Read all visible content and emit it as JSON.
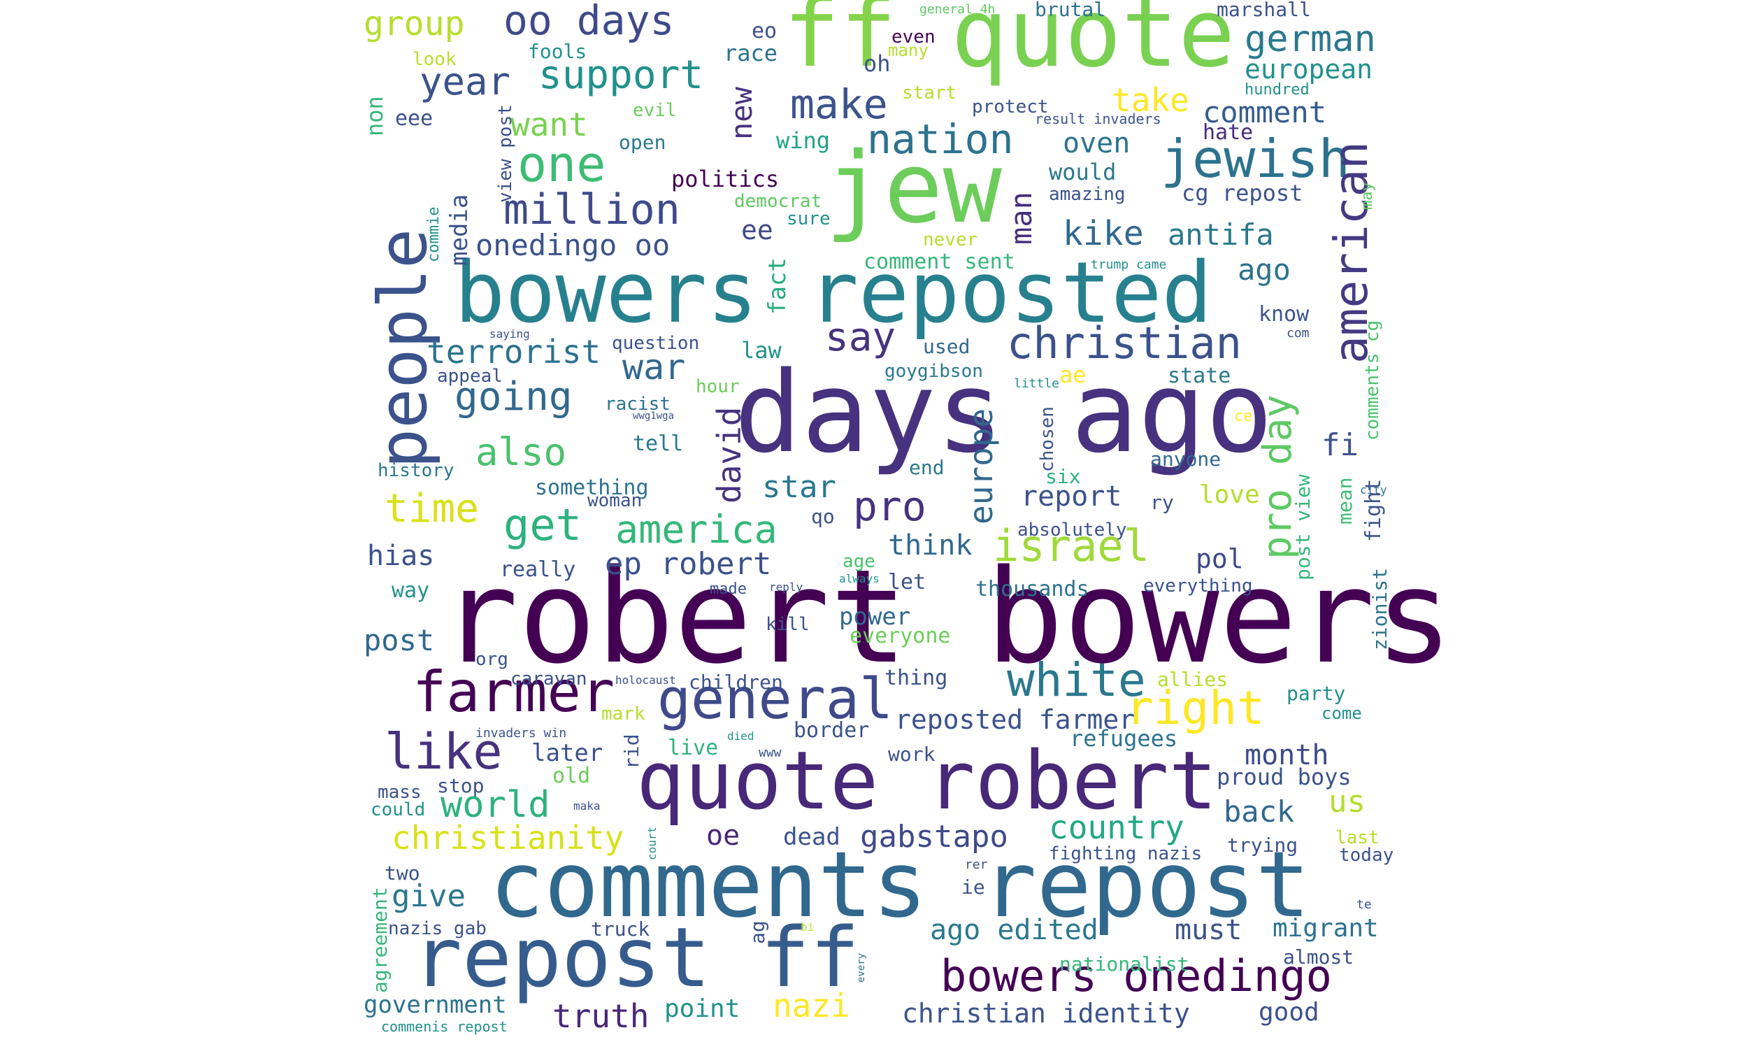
{
  "words": [
    {
      "text": "robert bowers",
      "color": "#440154"
    },
    {
      "text": "days ago",
      "color": "#46327e"
    },
    {
      "text": "comments repost",
      "color": "#31688e"
    },
    {
      "text": "quote robert",
      "color": "#482878"
    },
    {
      "text": "repost ff",
      "color": "#365c8d"
    },
    {
      "text": "bowers reposted",
      "color": "#27808e"
    },
    {
      "text": "jew",
      "color": "#6ccd5a"
    },
    {
      "text": "quote",
      "color": "#7ad151"
    },
    {
      "text": "ff",
      "color": "#84d44b"
    },
    {
      "text": "people",
      "color": "#3b528b"
    },
    {
      "text": "farmer",
      "color": "#440154"
    },
    {
      "text": "general",
      "color": "#3e4a89"
    },
    {
      "text": "jewish",
      "color": "#2c728e"
    },
    {
      "text": "white",
      "color": "#2a788e"
    },
    {
      "text": "christian",
      "color": "#3b528b"
    },
    {
      "text": "israel",
      "color": "#9fda3a"
    },
    {
      "text": "right",
      "color": "#fde725"
    },
    {
      "text": "bowers onedingo",
      "color": "#440154"
    },
    {
      "text": "like",
      "color": "#46327e"
    },
    {
      "text": "million",
      "color": "#3e4a89"
    },
    {
      "text": "one",
      "color": "#3dbc74"
    },
    {
      "text": "american",
      "color": "#443a83"
    },
    {
      "text": "nation",
      "color": "#2c728e"
    },
    {
      "text": "pro day",
      "color": "#5ec962"
    },
    {
      "text": "get",
      "color": "#2db27d"
    },
    {
      "text": "america",
      "color": "#35b779"
    },
    {
      "text": "time",
      "color": "#d8e219"
    },
    {
      "text": "make",
      "color": "#3b528b"
    },
    {
      "text": "oo days",
      "color": "#3e4a89"
    },
    {
      "text": "support",
      "color": "#21918c"
    },
    {
      "text": "year",
      "color": "#3b528b"
    },
    {
      "text": "group",
      "color": "#b5de2b"
    },
    {
      "text": "german",
      "color": "#2a788e"
    },
    {
      "text": "say",
      "color": "#46327e"
    },
    {
      "text": "going",
      "color": "#31688e"
    },
    {
      "text": "also",
      "color": "#4ac16d"
    },
    {
      "text": "pro",
      "color": "#46327e"
    },
    {
      "text": "war",
      "color": "#31688e"
    },
    {
      "text": "terrorist",
      "color": "#2c728e"
    },
    {
      "text": "europe",
      "color": "#31688e"
    },
    {
      "text": "david",
      "color": "#46327e"
    },
    {
      "text": "world",
      "color": "#2db27d"
    },
    {
      "text": "christianity",
      "color": "#d8e219"
    },
    {
      "text": "country",
      "color": "#22a884"
    },
    {
      "text": "truth",
      "color": "#482878"
    },
    {
      "text": "nazi",
      "color": "#fde725"
    },
    {
      "text": "christian identity",
      "color": "#3b528b"
    },
    {
      "text": "gabstapo",
      "color": "#3e4a89"
    },
    {
      "text": "ep robert",
      "color": "#3b528b"
    },
    {
      "text": "kike",
      "color": "#31688e"
    },
    {
      "text": "antifa",
      "color": "#2a788e"
    },
    {
      "text": "man",
      "color": "#472d7b"
    },
    {
      "text": "new",
      "color": "#46327e"
    },
    {
      "text": "want",
      "color": "#7ad151"
    },
    {
      "text": "onedingo oo",
      "color": "#3b528b"
    },
    {
      "text": "ee",
      "color": "#3e4a89"
    },
    {
      "text": "oven",
      "color": "#2c728e"
    },
    {
      "text": "take",
      "color": "#fde725"
    },
    {
      "text": "comment",
      "color": "#365c8d"
    },
    {
      "text": "european",
      "color": "#21918c"
    },
    {
      "text": "ago",
      "color": "#2c728e"
    },
    {
      "text": "report",
      "color": "#3b528b"
    },
    {
      "text": "star",
      "color": "#2a788e"
    },
    {
      "text": "think",
      "color": "#31688e"
    },
    {
      "text": "hias",
      "color": "#3b528b"
    },
    {
      "text": "post",
      "color": "#31688e"
    },
    {
      "text": "month",
      "color": "#3e4a89"
    },
    {
      "text": "us",
      "color": "#b5de2b"
    },
    {
      "text": "back",
      "color": "#31688e"
    },
    {
      "text": "must",
      "color": "#3b528b"
    },
    {
      "text": "ago edited",
      "color": "#2a788e"
    },
    {
      "text": "reposted farmer",
      "color": "#3b528b"
    },
    {
      "text": "give",
      "color": "#2a788e"
    },
    {
      "text": "oe",
      "color": "#482878"
    },
    {
      "text": "media",
      "color": "#3b528b"
    },
    {
      "text": "politics",
      "color": "#440154"
    },
    {
      "text": "fi",
      "color": "#3b528b"
    },
    {
      "text": "pol",
      "color": "#3e4a89"
    },
    {
      "text": "love",
      "color": "#b5de2b"
    },
    {
      "text": "migrant",
      "color": "#2c728e"
    },
    {
      "text": "government",
      "color": "#2c728e"
    },
    {
      "text": "point",
      "color": "#21918c"
    },
    {
      "text": "good",
      "color": "#3b528b"
    },
    {
      "text": "dead",
      "color": "#3b528b"
    },
    {
      "text": "power",
      "color": "#31688e"
    },
    {
      "text": "later",
      "color": "#3b528b"
    },
    {
      "text": "refugees",
      "color": "#2c728e"
    },
    {
      "text": "proud boys",
      "color": "#3b528b"
    },
    {
      "text": "fact",
      "color": "#27ad81"
    },
    {
      "text": "law",
      "color": "#21918c"
    },
    {
      "text": "hate",
      "color": "#472d7b"
    },
    {
      "text": "would",
      "color": "#2a788e"
    },
    {
      "text": "cg repost",
      "color": "#3b528b"
    },
    {
      "text": "wing",
      "color": "#20a386"
    },
    {
      "text": "race",
      "color": "#2c728e"
    },
    {
      "text": "eo",
      "color": "#3b528b"
    },
    {
      "text": "oh",
      "color": "#3b528b"
    },
    {
      "text": "even",
      "color": "#440154"
    },
    {
      "text": "many",
      "color": "#b5de2b"
    },
    {
      "text": "brutal",
      "color": "#2c728e"
    },
    {
      "text": "marshall",
      "color": "#3b528b"
    },
    {
      "text": "general 4h",
      "color": "#5ec962"
    },
    {
      "text": "fools",
      "color": "#21918c"
    },
    {
      "text": "look",
      "color": "#b5de2b"
    },
    {
      "text": "non",
      "color": "#35b779"
    },
    {
      "text": "eee",
      "color": "#3b528b"
    },
    {
      "text": "evil",
      "color": "#6ccd5a"
    },
    {
      "text": "open",
      "color": "#2a788e"
    },
    {
      "text": "view post",
      "color": "#3b528b"
    },
    {
      "text": "start",
      "color": "#b5de2b"
    },
    {
      "text": "protect",
      "color": "#3b528b"
    },
    {
      "text": "result invaders",
      "color": "#3b528b"
    },
    {
      "text": "hundred",
      "color": "#21918c"
    },
    {
      "text": "commie",
      "color": "#21918c"
    },
    {
      "text": "democrat",
      "color": "#5ec962"
    },
    {
      "text": "sure",
      "color": "#21918c"
    },
    {
      "text": "amazing",
      "color": "#3b528b"
    },
    {
      "text": "may",
      "color": "#5ec962"
    },
    {
      "text": "never",
      "color": "#b5de2b"
    },
    {
      "text": "comment sent",
      "color": "#35b779"
    },
    {
      "text": "trump came",
      "color": "#21918c"
    },
    {
      "text": "know",
      "color": "#3b528b"
    },
    {
      "text": "com",
      "color": "#3b528b"
    },
    {
      "text": "comments cg",
      "color": "#4ac16d"
    },
    {
      "text": "saying",
      "color": "#3b528b"
    },
    {
      "text": "question",
      "color": "#3b528b"
    },
    {
      "text": "used",
      "color": "#31688e"
    },
    {
      "text": "goygibson",
      "color": "#2a788e"
    },
    {
      "text": "state",
      "color": "#2a788e"
    },
    {
      "text": "ae",
      "color": "#fde725"
    },
    {
      "text": "appeal",
      "color": "#3b528b"
    },
    {
      "text": "hour",
      "color": "#6ccd5a"
    },
    {
      "text": "little",
      "color": "#21918c"
    },
    {
      "text": "chosen",
      "color": "#3b528b"
    },
    {
      "text": "racist",
      "color": "#2c728e"
    },
    {
      "text": "wwg1wga",
      "color": "#3b528b"
    },
    {
      "text": "ce",
      "color": "#fde725"
    },
    {
      "text": "history",
      "color": "#2a788e"
    },
    {
      "text": "tell",
      "color": "#2a788e"
    },
    {
      "text": "anyone",
      "color": "#31688e"
    },
    {
      "text": "end",
      "color": "#2a788e"
    },
    {
      "text": "six",
      "color": "#2db27d"
    },
    {
      "text": "mean",
      "color": "#3dbc74"
    },
    {
      "text": "post view",
      "color": "#35b779"
    },
    {
      "text": "city",
      "color": "#2c728e"
    },
    {
      "text": "something",
      "color": "#2c728e"
    },
    {
      "text": "woman",
      "color": "#3b528b"
    },
    {
      "text": "qo",
      "color": "#3b528b"
    },
    {
      "text": "ry",
      "color": "#3b528b"
    },
    {
      "text": "fight",
      "color": "#3b528b"
    },
    {
      "text": "absolutely",
      "color": "#3b528b"
    },
    {
      "text": "really",
      "color": "#3b528b"
    },
    {
      "text": "age",
      "color": "#4ac16d"
    },
    {
      "text": "zionist",
      "color": "#2c728e"
    },
    {
      "text": "let",
      "color": "#3b528b"
    },
    {
      "text": "way",
      "color": "#21918c"
    },
    {
      "text": "made",
      "color": "#3b528b"
    },
    {
      "text": "reply",
      "color": "#3b528b"
    },
    {
      "text": "always",
      "color": "#21918c"
    },
    {
      "text": "thousands",
      "color": "#2c728e"
    },
    {
      "text": "everything",
      "color": "#3b528b"
    },
    {
      "text": "kill",
      "color": "#3b528b"
    },
    {
      "text": "everyone",
      "color": "#6ccd5a"
    },
    {
      "text": "org",
      "color": "#3b528b"
    },
    {
      "text": "caravan",
      "color": "#3b528b"
    },
    {
      "text": "holocaust",
      "color": "#3b528b"
    },
    {
      "text": "children",
      "color": "#3b528b"
    },
    {
      "text": "thing",
      "color": "#3b528b"
    },
    {
      "text": "allies",
      "color": "#b5de2b"
    },
    {
      "text": "party",
      "color": "#21918c"
    },
    {
      "text": "mark",
      "color": "#b5de2b"
    },
    {
      "text": "come",
      "color": "#21918c"
    },
    {
      "text": "invaders win",
      "color": "#3b528b"
    },
    {
      "text": "died",
      "color": "#21918c"
    },
    {
      "text": "www",
      "color": "#3b528b"
    },
    {
      "text": "border",
      "color": "#3b528b"
    },
    {
      "text": "live",
      "color": "#2db27d"
    },
    {
      "text": "rid",
      "color": "#3b528b"
    },
    {
      "text": "stop",
      "color": "#3b528b"
    },
    {
      "text": "work",
      "color": "#3b528b"
    },
    {
      "text": "old",
      "color": "#6ccd5a"
    },
    {
      "text": "mass",
      "color": "#3b528b"
    },
    {
      "text": "could",
      "color": "#21918c"
    },
    {
      "text": "maka",
      "color": "#3b528b"
    },
    {
      "text": "court",
      "color": "#21918c"
    },
    {
      "text": "fighting nazis",
      "color": "#3b528b"
    },
    {
      "text": "trying",
      "color": "#3b528b"
    },
    {
      "text": "last",
      "color": "#b5de2b"
    },
    {
      "text": "today",
      "color": "#3b528b"
    },
    {
      "text": "two",
      "color": "#3b528b"
    },
    {
      "text": "rer",
      "color": "#3b528b"
    },
    {
      "text": "ie",
      "color": "#3b528b"
    },
    {
      "text": "te",
      "color": "#3b528b"
    },
    {
      "text": "agreement",
      "color": "#35b779"
    },
    {
      "text": "nazis gab",
      "color": "#3b528b"
    },
    {
      "text": "truck",
      "color": "#3b528b"
    },
    {
      "text": "ag",
      "color": "#3b528b"
    },
    {
      "text": "bi",
      "color": "#b5de2b"
    },
    {
      "text": "every",
      "color": "#2c728e"
    },
    {
      "text": "nationalist",
      "color": "#35b779"
    },
    {
      "text": "almost",
      "color": "#3b528b"
    },
    {
      "text": "commenis repost",
      "color": "#21918c"
    }
  ]
}
